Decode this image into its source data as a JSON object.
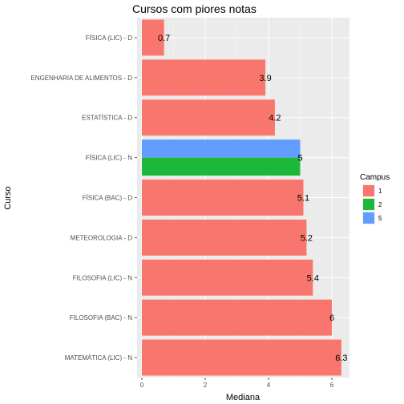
{
  "chart_data": {
    "type": "bar",
    "orientation": "horizontal",
    "title": "Cursos com piores notas",
    "xlabel": "Mediana",
    "ylabel": "Curso",
    "xlim": [
      0,
      6.6
    ],
    "x_ticks": [
      0,
      2,
      4,
      6
    ],
    "grid": true,
    "legend_title": "Campus",
    "legend_position": "right",
    "categories": [
      "FÍSICA (LIC) - D",
      "ENGENHARIA DE ALIMENTOS - D",
      "ESTATÍSTICA - D",
      "FÍSICA (LIC) - N",
      "FÍSICA (BAC) - D",
      "METEOROLOGIA - D",
      "FILOSOFIA (LIC) - N",
      "FILOSOFIA (BAC) - N",
      "MATEMÁTICA (LIC) - N"
    ],
    "series": [
      {
        "name": "1",
        "color": "#F8766D",
        "values": [
          0.7,
          3.9,
          4.2,
          null,
          5.1,
          5.2,
          5.4,
          6,
          6.3
        ]
      },
      {
        "name": "2",
        "color": "#1DB83A",
        "values": [
          null,
          null,
          null,
          5,
          null,
          null,
          null,
          null,
          null
        ]
      },
      {
        "name": "5",
        "color": "#619CFF",
        "values": [
          null,
          null,
          null,
          5,
          null,
          null,
          null,
          null,
          null
        ]
      }
    ],
    "data_labels": [
      "0.7",
      "3.9",
      "4.2",
      "5",
      "5.1",
      "5.2",
      "5.4",
      "6",
      "6.3"
    ]
  }
}
